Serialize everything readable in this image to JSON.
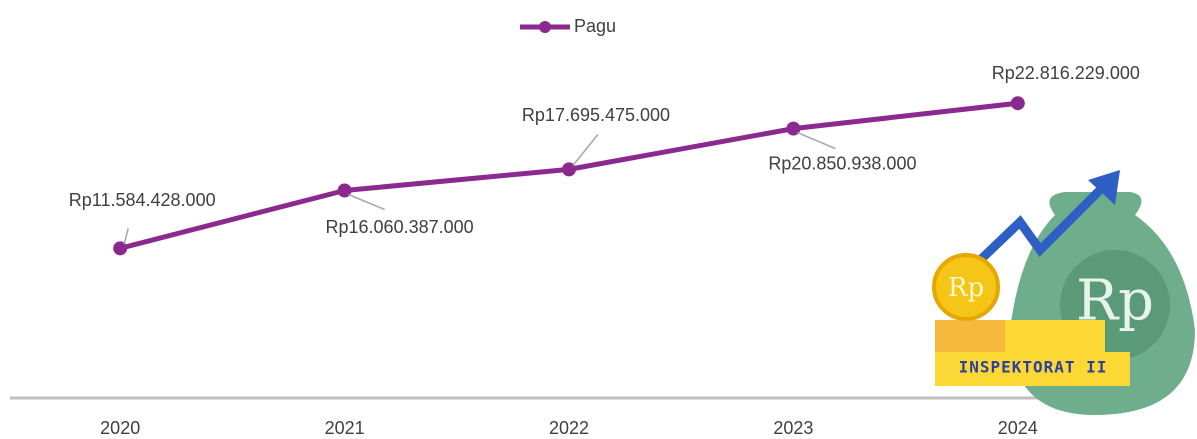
{
  "chart_data": {
    "type": "line",
    "categories": [
      "2020",
      "2021",
      "2022",
      "2023",
      "2024"
    ],
    "series": [
      {
        "name": "Pagu",
        "color": "#8b2a8e",
        "values": [
          11584428000,
          16060387000,
          17695475000,
          20850938000,
          22816229000
        ],
        "value_labels": [
          "Rp11.584.428.000",
          "Rp16.060.387.000",
          "Rp17.695.475.000",
          "Rp20.850.938.000",
          "Rp22.816.229.000"
        ]
      }
    ],
    "ylim": [
      0,
      25000000000
    ],
    "legend": "top",
    "annotation": "INSPEKTORAT II",
    "coin_label": "Rp",
    "bag_label": "Rp"
  }
}
